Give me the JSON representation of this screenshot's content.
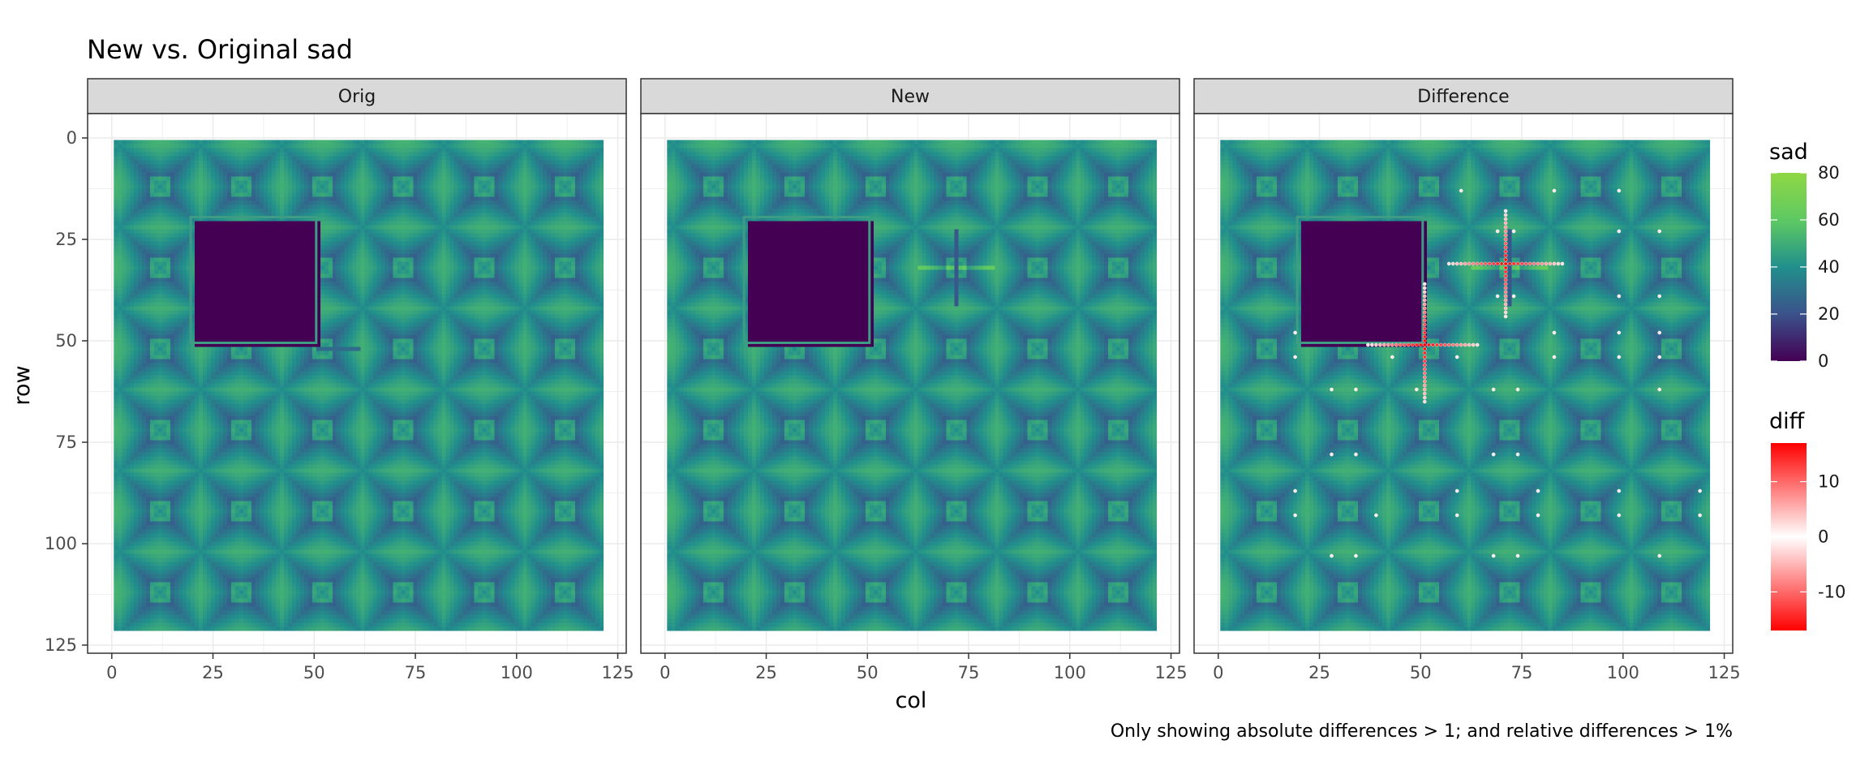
{
  "chart_data": {
    "type": "heatmap",
    "title": "New vs. Original sad",
    "caption": "Only showing absolute differences > 1; and relative differences > 1%",
    "xlabel": "col",
    "ylabel": "row",
    "xlim": [
      0,
      125
    ],
    "ylim": [
      125,
      0
    ],
    "x_ticks": [
      0,
      25,
      50,
      75,
      100,
      125
    ],
    "y_ticks": [
      0,
      25,
      50,
      75,
      100,
      125
    ],
    "grid": true,
    "grid_size": [
      121,
      121
    ],
    "facets": [
      {
        "label": "Orig"
      },
      {
        "label": "New"
      },
      {
        "label": "Difference"
      }
    ],
    "blank_region": {
      "col": [
        20,
        50
      ],
      "row": [
        20,
        50
      ],
      "value": 0
    },
    "legends": [
      {
        "title": "sad",
        "ticks": [
          80,
          60,
          40,
          20,
          0
        ],
        "range": [
          0,
          80
        ],
        "colors": [
          "#440154",
          "#3b528b",
          "#21908c",
          "#5ec962",
          "#8fd744"
        ]
      },
      {
        "title": "diff",
        "ticks": [
          10,
          0,
          -10
        ],
        "range": [
          -17,
          17
        ],
        "colors": [
          "#ff0000",
          "#ffffff",
          "#ff0000"
        ]
      }
    ],
    "difference_points": {
      "cross_1": {
        "center": {
          "col": 71,
          "row": 31
        },
        "h_span": [
          57,
          85
        ],
        "v_span": [
          18,
          44
        ]
      },
      "cross_2": {
        "center": {
          "col": 51,
          "row": 51
        },
        "h_span": [
          37,
          64
        ],
        "v_span": [
          36,
          65
        ]
      },
      "isolated": [
        {
          "col": 60,
          "row": 13
        },
        {
          "col": 83,
          "row": 13
        },
        {
          "col": 99,
          "row": 13
        },
        {
          "col": 69,
          "row": 23
        },
        {
          "col": 73,
          "row": 23
        },
        {
          "col": 99,
          "row": 23
        },
        {
          "col": 109,
          "row": 23
        },
        {
          "col": 69,
          "row": 39
        },
        {
          "col": 73,
          "row": 39
        },
        {
          "col": 99,
          "row": 39
        },
        {
          "col": 109,
          "row": 39
        },
        {
          "col": 19,
          "row": 48
        },
        {
          "col": 19,
          "row": 54
        },
        {
          "col": 43,
          "row": 54
        },
        {
          "col": 59,
          "row": 54
        },
        {
          "col": 83,
          "row": 48
        },
        {
          "col": 83,
          "row": 54
        },
        {
          "col": 99,
          "row": 48
        },
        {
          "col": 99,
          "row": 54
        },
        {
          "col": 109,
          "row": 48
        },
        {
          "col": 109,
          "row": 54
        },
        {
          "col": 28,
          "row": 62
        },
        {
          "col": 34,
          "row": 62
        },
        {
          "col": 49,
          "row": 62
        },
        {
          "col": 68,
          "row": 62
        },
        {
          "col": 74,
          "row": 62
        },
        {
          "col": 109,
          "row": 62
        },
        {
          "col": 28,
          "row": 78
        },
        {
          "col": 34,
          "row": 78
        },
        {
          "col": 68,
          "row": 78
        },
        {
          "col": 74,
          "row": 78
        },
        {
          "col": 19,
          "row": 87
        },
        {
          "col": 19,
          "row": 93
        },
        {
          "col": 39,
          "row": 93
        },
        {
          "col": 59,
          "row": 87
        },
        {
          "col": 59,
          "row": 93
        },
        {
          "col": 79,
          "row": 87
        },
        {
          "col": 79,
          "row": 93
        },
        {
          "col": 99,
          "row": 87
        },
        {
          "col": 99,
          "row": 93
        },
        {
          "col": 119,
          "row": 87
        },
        {
          "col": 119,
          "row": 93
        },
        {
          "col": 28,
          "row": 103
        },
        {
          "col": 34,
          "row": 103
        },
        {
          "col": 68,
          "row": 103
        },
        {
          "col": 74,
          "row": 103
        },
        {
          "col": 109,
          "row": 103
        }
      ]
    }
  }
}
